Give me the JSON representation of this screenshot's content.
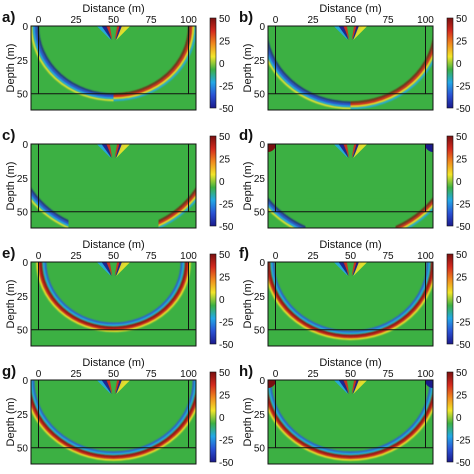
{
  "figure": {
    "xlabel": "Distance (m)",
    "ylabel": "Depth (m)",
    "colors": {
      "background": "#3cb043",
      "colorbar": [
        "#1b1a8c",
        "#2a52d4",
        "#23a8e6",
        "#3cb043",
        "#f2e62a",
        "#f08a1e",
        "#d42a1e",
        "#7a1010"
      ]
    }
  },
  "chart_data": [
    {
      "panel": "a)",
      "type": "heatmap",
      "xlabel": "Distance (m)",
      "ylabel": "Depth (m)",
      "xticks": [
        0,
        25,
        50,
        75,
        100
      ],
      "yticks": [
        0,
        25,
        50
      ],
      "xlim": [
        -5,
        105
      ],
      "ylim": [
        0,
        62
      ],
      "colorbar_ticks": [
        50,
        25,
        0,
        -25,
        -50
      ],
      "clim": [
        -50,
        50
      ],
      "box": {
        "x": [
          0,
          100
        ],
        "depth": 50
      },
      "wavefront": {
        "kind": "semicircle",
        "cx": 50,
        "radius": 52,
        "ends": "upper"
      },
      "corner_sources": false
    },
    {
      "panel": "b)",
      "type": "heatmap",
      "xlabel": "Distance (m)",
      "ylabel": "Depth (m)",
      "xticks": [
        0,
        25,
        50,
        75,
        100
      ],
      "yticks": [
        0,
        25,
        50
      ],
      "xlim": [
        -5,
        105
      ],
      "ylim": [
        0,
        62
      ],
      "colorbar_ticks": [
        50,
        25,
        0,
        -25,
        -50
      ],
      "clim": [
        -50,
        50
      ],
      "box": {
        "x": [
          0,
          100
        ],
        "depth": 50
      },
      "wavefront": {
        "kind": "semicircle",
        "cx": 50,
        "radius": 58,
        "ends": "upper"
      },
      "corner_sources": false
    },
    {
      "panel": "c)",
      "type": "heatmap",
      "xlabel": "",
      "ylabel": "Depth (m)",
      "xticks": [],
      "yticks": [
        0,
        25,
        50
      ],
      "xlim": [
        -5,
        105
      ],
      "ylim": [
        0,
        62
      ],
      "colorbar_ticks": [
        50,
        25,
        0,
        -25,
        -50
      ],
      "clim": [
        -50,
        50
      ],
      "box": {
        "x": [
          0,
          100
        ],
        "depth": 50
      },
      "wavefront": {
        "kind": "split",
        "cx": 50,
        "radius": 66
      },
      "corner_sources": false
    },
    {
      "panel": "d)",
      "type": "heatmap",
      "xlabel": "",
      "ylabel": "Depth (m)",
      "xticks": [],
      "yticks": [
        0,
        25,
        50
      ],
      "xlim": [
        -5,
        105
      ],
      "ylim": [
        0,
        62
      ],
      "colorbar_ticks": [
        50,
        25,
        0,
        -25,
        -50
      ],
      "clim": [
        -50,
        50
      ],
      "box": {
        "x": [
          0,
          100
        ],
        "depth": 50
      },
      "wavefront": {
        "kind": "split",
        "cx": 50,
        "radius": 70
      },
      "corner_sources": true
    },
    {
      "panel": "e)",
      "type": "heatmap",
      "xlabel": "Distance (m)",
      "ylabel": "Depth (m)",
      "xticks": [
        0,
        25,
        50,
        75,
        100
      ],
      "yticks": [
        0,
        25,
        50
      ],
      "xlim": [
        -5,
        105
      ],
      "ylim": [
        0,
        62
      ],
      "colorbar_ticks": [
        50,
        25,
        0,
        -25,
        -50
      ],
      "clim": [
        -50,
        50
      ],
      "box": {
        "x": [
          0,
          100
        ],
        "depth": 50
      },
      "wavefront": {
        "kind": "bowl",
        "cx": 50,
        "radius": 48
      },
      "corner_sources": false
    },
    {
      "panel": "f)",
      "type": "heatmap",
      "xlabel": "Distance (m)",
      "ylabel": "Depth (m)",
      "xticks": [
        0,
        25,
        50,
        75,
        100
      ],
      "yticks": [
        0,
        25,
        50
      ],
      "xlim": [
        -5,
        105
      ],
      "ylim": [
        0,
        62
      ],
      "colorbar_ticks": [
        50,
        25,
        0,
        -25,
        -50
      ],
      "clim": [
        -50,
        50
      ],
      "box": {
        "x": [
          0,
          100
        ],
        "depth": 50
      },
      "wavefront": {
        "kind": "bowl",
        "cx": 50,
        "radius": 54
      },
      "corner_sources": false
    },
    {
      "panel": "g)",
      "type": "heatmap",
      "xlabel": "Distance (m)",
      "ylabel": "Depth (m)",
      "xticks": [
        0,
        25,
        50,
        75,
        100
      ],
      "yticks": [
        0,
        25,
        50
      ],
      "xlim": [
        -5,
        105
      ],
      "ylim": [
        0,
        62
      ],
      "colorbar_ticks": [
        50,
        25,
        0,
        -25,
        -50
      ],
      "clim": [
        -50,
        50
      ],
      "box": {
        "x": [
          0,
          100
        ],
        "depth": 50
      },
      "wavefront": {
        "kind": "bowl",
        "cx": 50,
        "radius": 56
      },
      "corner_sources": false
    },
    {
      "panel": "h)",
      "type": "heatmap",
      "xlabel": "Distance (m)",
      "ylabel": "Depth (m)",
      "xticks": [
        0,
        25,
        50,
        75,
        100
      ],
      "yticks": [
        0,
        25,
        50
      ],
      "xlim": [
        -5,
        105
      ],
      "ylim": [
        0,
        62
      ],
      "colorbar_ticks": [
        50,
        25,
        0,
        -25,
        -50
      ],
      "clim": [
        -50,
        50
      ],
      "box": {
        "x": [
          0,
          100
        ],
        "depth": 50
      },
      "wavefront": {
        "kind": "bowl",
        "cx": 50,
        "radius": 56
      },
      "corner_sources": true
    }
  ]
}
